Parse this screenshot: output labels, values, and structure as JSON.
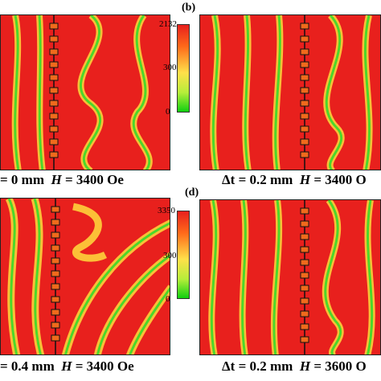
{
  "panels": [
    {
      "id": "a",
      "label": "",
      "caption_prefix": "= 0 mm",
      "caption_h": "H",
      "caption_suffix": " = 3400 Oe"
    },
    {
      "id": "b",
      "label": "(b)",
      "caption_prefix": "Δt = 0.2 mm",
      "caption_h": "H",
      "caption_suffix": " = 3400 O"
    },
    {
      "id": "c",
      "label": "",
      "caption_prefix": "= 0.4 mm",
      "caption_h": "H",
      "caption_suffix": " = 3400 Oe"
    },
    {
      "id": "d",
      "label": "(d)",
      "caption_prefix": "Δt = 0.2 mm",
      "caption_h": "H",
      "caption_suffix": " = 3600 O"
    }
  ],
  "colorbars": [
    {
      "max": "2132",
      "mid": "300",
      "min": "0"
    },
    {
      "max": "3350",
      "mid": "300",
      "min": "0"
    }
  ],
  "colors": {
    "high": "#e8201d",
    "mid": "#ffd23a",
    "low": "#4bd82a",
    "frame": "#222222"
  }
}
